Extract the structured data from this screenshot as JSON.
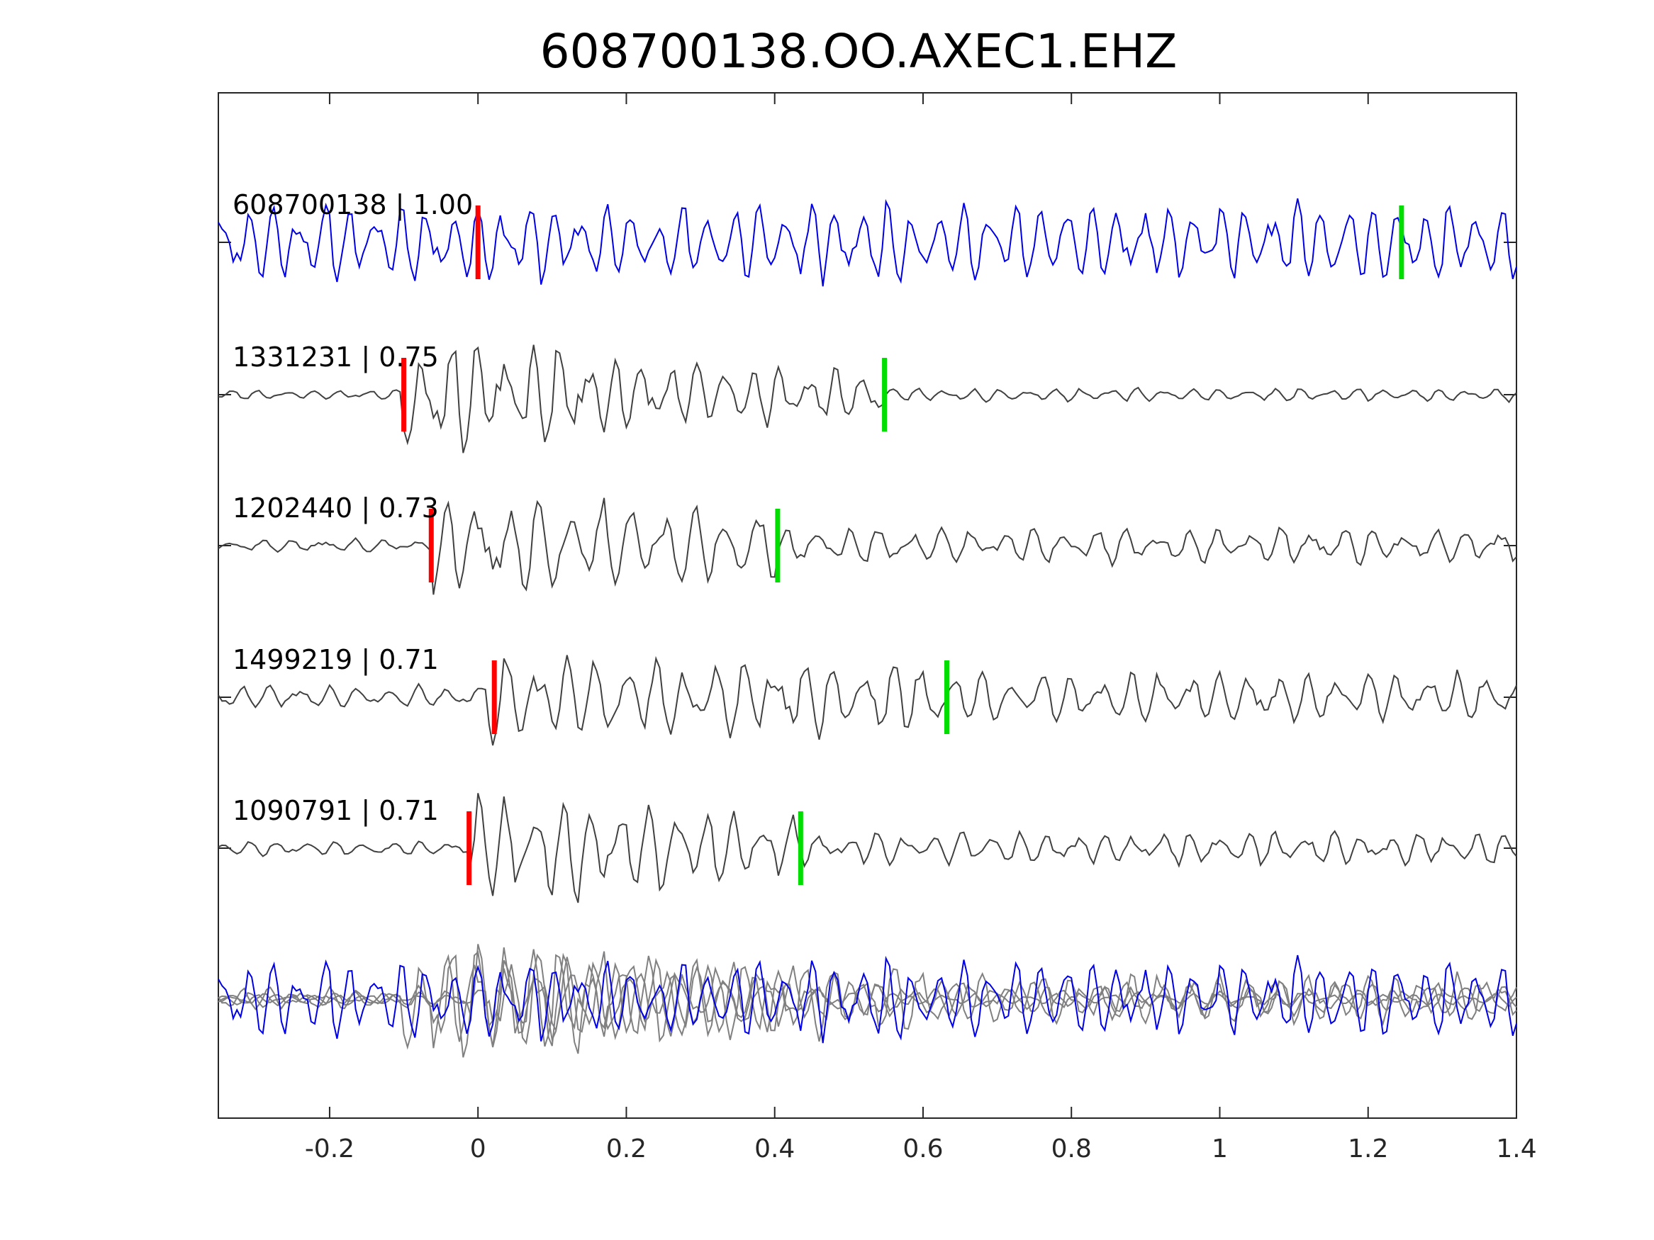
{
  "chart_data": {
    "type": "line",
    "title": "608700138.OO.AXEC1.EHZ",
    "xlabel": "",
    "ylabel": "",
    "xlim": [
      -0.35,
      1.4
    ],
    "xticks": [
      -0.2,
      0,
      0.2,
      0.4,
      0.6,
      0.8,
      1,
      1.2,
      1.4
    ],
    "xtick_labels": [
      "-0.2",
      "0",
      "0.2",
      "0.4",
      "0.6",
      "0.8",
      "1",
      "1.2",
      "1.4"
    ],
    "grid": false,
    "legend": "none",
    "colors": {
      "master": "#0000e6",
      "template": "#404040",
      "overlay_template": "#808080",
      "p_pick": "#ff0000",
      "s_pick": "#00dd00"
    },
    "traces": [
      {
        "label": "608700138 | 1.00",
        "event_id": "608700138",
        "correlation": 1.0,
        "p_pick": 0.0,
        "s_pick": 1.245,
        "onset": -0.35,
        "role": "master"
      },
      {
        "label": "1331231 | 0.75",
        "event_id": "1331231",
        "correlation": 0.75,
        "p_pick": -0.1,
        "s_pick": 0.548,
        "onset": -0.1,
        "role": "template"
      },
      {
        "label": "1202440 | 0.73",
        "event_id": "1202440",
        "correlation": 0.73,
        "p_pick": -0.063,
        "s_pick": 0.404,
        "onset": -0.06,
        "role": "template"
      },
      {
        "label": "1499219 | 0.71",
        "event_id": "1499219",
        "correlation": 0.71,
        "p_pick": 0.022,
        "s_pick": 0.632,
        "onset": 0.01,
        "role": "template"
      },
      {
        "label": "1090791 | 0.71",
        "event_id": "1090791",
        "correlation": 0.71,
        "p_pick": -0.012,
        "s_pick": 0.435,
        "onset": -0.01,
        "role": "template"
      }
    ],
    "overlay": "all traces aligned and superimposed"
  }
}
